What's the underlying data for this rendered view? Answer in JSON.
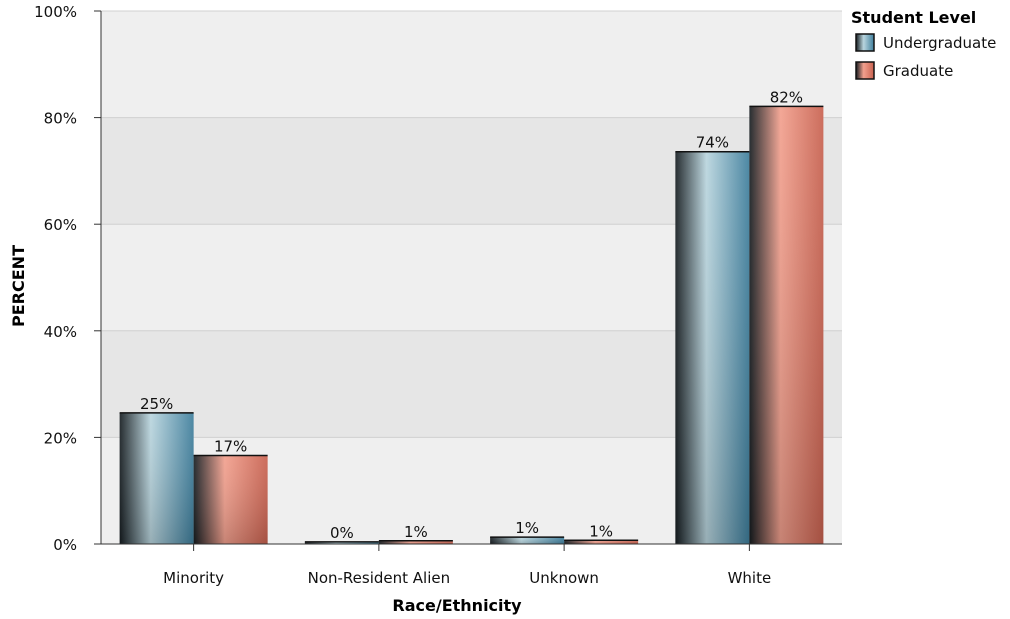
{
  "chart_data": {
    "type": "bar",
    "categories": [
      "Minority",
      "Non-Resident Alien",
      "Unknown",
      "White"
    ],
    "series": [
      {
        "name": "Undergraduate",
        "values": [
          24.6,
          0.4,
          1.3,
          73.6
        ],
        "labels": [
          "25%",
          "0%",
          "1%",
          "74%"
        ],
        "color": "#3e7e9c",
        "highlight": "#b9d5de"
      },
      {
        "name": "Graduate",
        "values": [
          16.6,
          0.6,
          0.7,
          82.1
        ],
        "labels": [
          "17%",
          "1%",
          "1%",
          "82%"
        ],
        "color": "#c8614f",
        "highlight": "#f2a08e"
      }
    ],
    "xlabel": "Race/Ethnicity",
    "ylabel": "PERCENT",
    "ylim": [
      0,
      100
    ],
    "yticks": [
      0,
      20,
      40,
      60,
      80,
      100
    ],
    "ytick_labels": [
      "0%",
      "20%",
      "40%",
      "60%",
      "80%",
      "100%"
    ],
    "legend": {
      "title": "Student Level",
      "position": "top-right"
    },
    "grid": true
  }
}
